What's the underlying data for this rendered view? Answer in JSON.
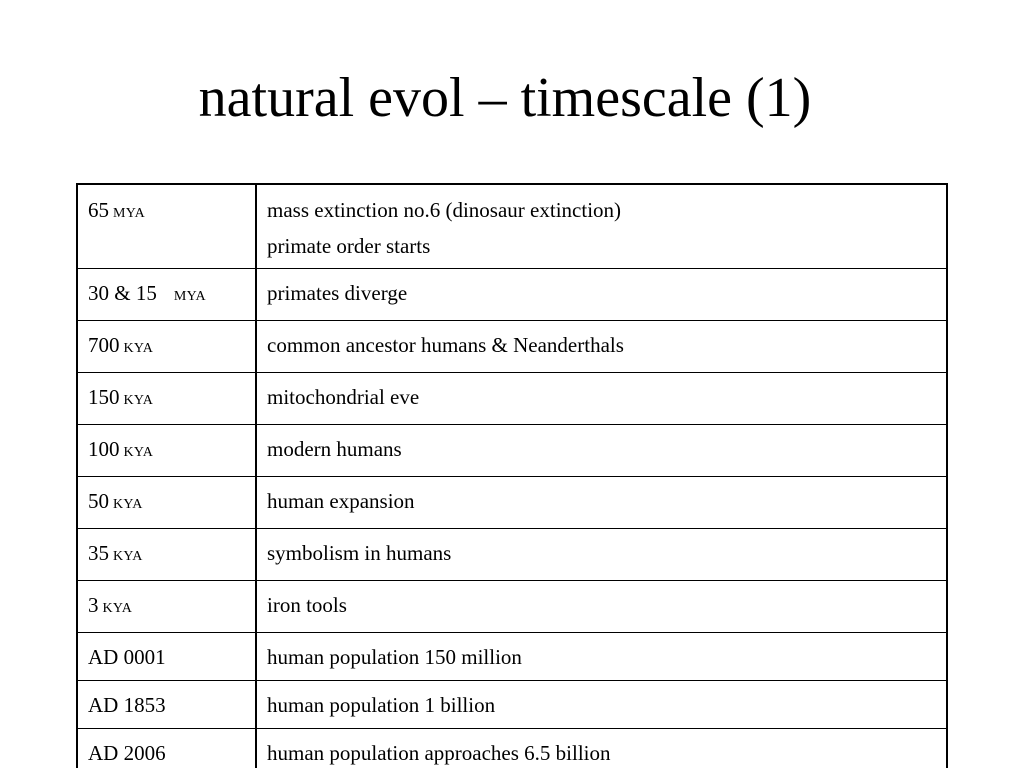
{
  "slide": {
    "title": "natural evol – timescale (1)"
  },
  "rows": [
    {
      "time": "65",
      "unit": "MYA",
      "events": [
        "mass extinction no.6 (dinosaur extinction)",
        "primate order starts"
      ]
    },
    {
      "time": "30 & 15",
      "unit": "MYA",
      "events": [
        "primates diverge"
      ]
    },
    {
      "time": "700",
      "unit": "KYA",
      "events": [
        "common ancestor humans & Neanderthals"
      ]
    },
    {
      "time": "150",
      "unit": "KYA",
      "events": [
        "mitochondrial eve"
      ]
    },
    {
      "time": "100",
      "unit": "KYA",
      "events": [
        "modern humans"
      ]
    },
    {
      "time": "50",
      "unit": "KYA",
      "events": [
        "human expansion"
      ]
    },
    {
      "time": "35",
      "unit": "KYA",
      "events": [
        "symbolism in humans"
      ]
    },
    {
      "time": "3",
      "unit": "KYA",
      "events": [
        "iron tools"
      ]
    },
    {
      "time": "AD 0001",
      "unit": "",
      "events": [
        "human population 150 million"
      ]
    },
    {
      "time": "AD 1853",
      "unit": "",
      "events": [
        "human population 1 billion"
      ]
    },
    {
      "time": "AD 2006",
      "unit": "",
      "events": [
        "human population approaches 6.5 billion"
      ]
    }
  ]
}
